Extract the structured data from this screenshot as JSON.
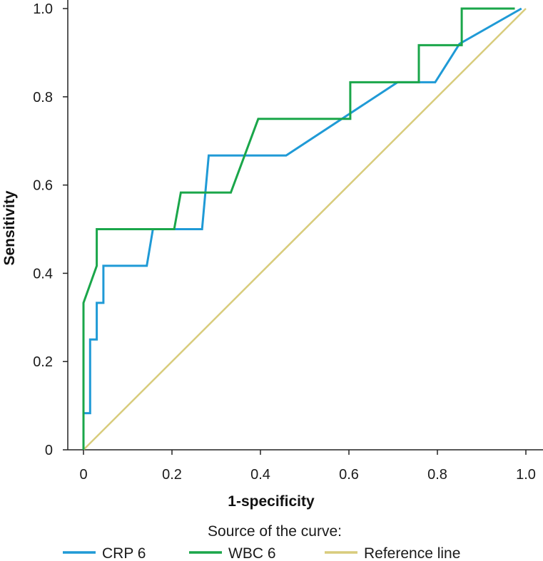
{
  "chart_data": {
    "type": "line",
    "title": "",
    "xlabel": "1-specificity",
    "ylabel": "Sensitivity",
    "xlim": [
      0,
      1
    ],
    "ylim": [
      0,
      1
    ],
    "x_ticks": [
      "0",
      "0.2",
      "0.4",
      "0.6",
      "0.8",
      "1.0"
    ],
    "y_ticks": [
      "0",
      "0.2",
      "0.4",
      "0.6",
      "0.8",
      "1.0"
    ],
    "grid": false,
    "legend_title": "Source of the curve:",
    "legend_position": "bottom",
    "series": [
      {
        "name": "CRP 6",
        "color": "#1f9ad6",
        "points": [
          [
            0,
            0
          ],
          [
            0,
            0.083
          ],
          [
            0.015,
            0.083
          ],
          [
            0.015,
            0.25
          ],
          [
            0.03,
            0.25
          ],
          [
            0.03,
            0.333
          ],
          [
            0.045,
            0.333
          ],
          [
            0.045,
            0.417
          ],
          [
            0.143,
            0.417
          ],
          [
            0.157,
            0.5
          ],
          [
            0.268,
            0.5
          ],
          [
            0.283,
            0.667
          ],
          [
            0.458,
            0.667
          ],
          [
            0.71,
            0.833
          ],
          [
            0.795,
            0.833
          ],
          [
            0.85,
            0.92
          ],
          [
            0.99,
            1.0
          ]
        ]
      },
      {
        "name": "WBC 6",
        "color": "#1aa64a",
        "points": [
          [
            0,
            0
          ],
          [
            0,
            0.333
          ],
          [
            0.03,
            0.417
          ],
          [
            0.03,
            0.5
          ],
          [
            0.205,
            0.5
          ],
          [
            0.22,
            0.583
          ],
          [
            0.333,
            0.583
          ],
          [
            0.395,
            0.75
          ],
          [
            0.603,
            0.75
          ],
          [
            0.603,
            0.833
          ],
          [
            0.758,
            0.833
          ],
          [
            0.758,
            0.917
          ],
          [
            0.855,
            0.917
          ],
          [
            0.855,
            1.0
          ],
          [
            0.975,
            1.0
          ]
        ]
      },
      {
        "name": "Reference line",
        "color": "#d8cc7c",
        "points": [
          [
            0,
            0
          ],
          [
            1,
            1
          ]
        ]
      }
    ]
  }
}
